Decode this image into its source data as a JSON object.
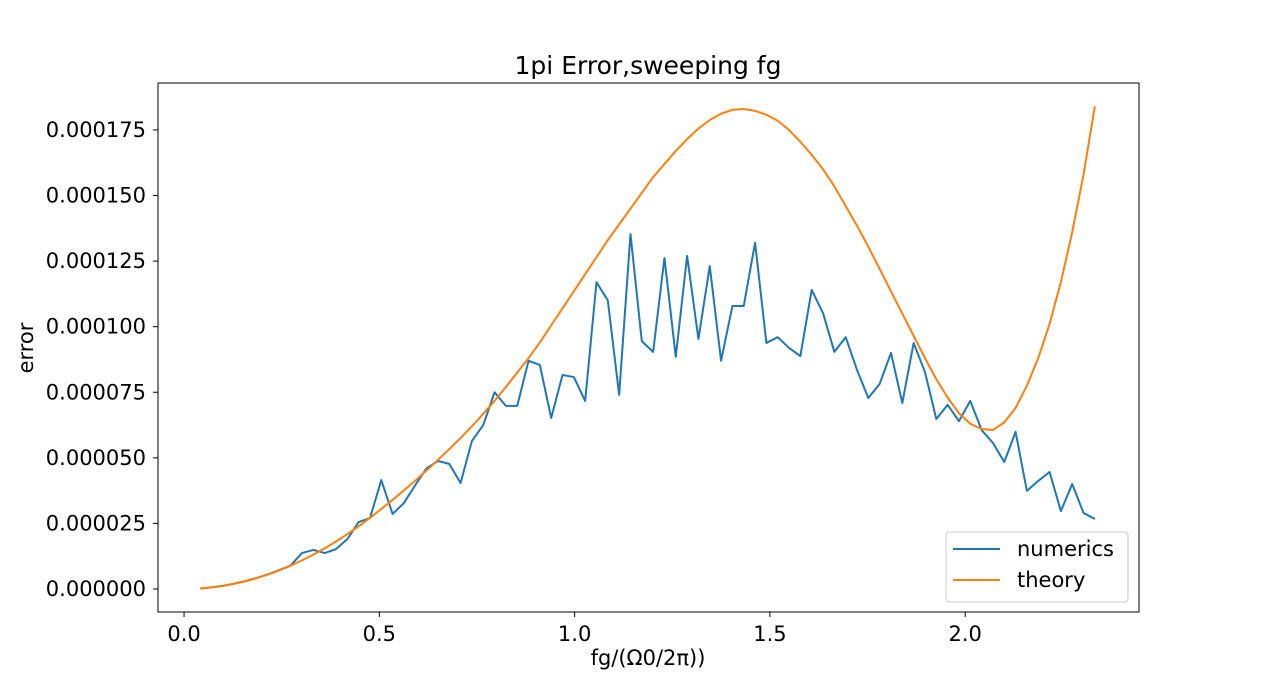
{
  "chart_data": {
    "type": "line",
    "title": "1pi Error,sweeping fg",
    "x_label": "fg/(Ω0/2π))",
    "y_label": "error",
    "x": [
      0.041,
      0.07,
      0.099,
      0.128,
      0.157,
      0.186,
      0.215,
      0.244,
      0.273,
      0.302,
      0.331,
      0.36,
      0.389,
      0.418,
      0.447,
      0.476,
      0.505,
      0.534,
      0.563,
      0.592,
      0.621,
      0.65,
      0.679,
      0.708,
      0.737,
      0.766,
      0.795,
      0.824,
      0.853,
      0.882,
      0.911,
      0.94,
      0.969,
      0.998,
      1.027,
      1.056,
      1.085,
      1.114,
      1.143,
      1.172,
      1.201,
      1.23,
      1.259,
      1.288,
      1.317,
      1.346,
      1.375,
      1.404,
      1.433,
      1.462,
      1.491,
      1.52,
      1.549,
      1.578,
      1.607,
      1.636,
      1.665,
      1.694,
      1.723,
      1.752,
      1.781,
      1.81,
      1.839,
      1.868,
      1.897,
      1.926,
      1.955,
      1.984,
      2.013,
      2.042,
      2.071,
      2.1,
      2.129,
      2.158,
      2.187,
      2.216,
      2.245,
      2.274,
      2.303,
      2.332
    ],
    "series": [
      {
        "name": "numerics",
        "color": "#1f77b4",
        "values": [
          2e-07,
          6e-07,
          1.2e-06,
          2e-06,
          3e-06,
          4.2e-06,
          5.6e-06,
          7.2e-06,
          9e-06,
          1.37e-05,
          1.49e-05,
          1.37e-05,
          1.52e-05,
          1.9e-05,
          2.55e-05,
          2.7e-05,
          4.15e-05,
          2.86e-05,
          3.28e-05,
          3.96e-05,
          4.6e-05,
          4.88e-05,
          4.77e-05,
          4.04e-05,
          5.64e-05,
          6.25e-05,
          7.5e-05,
          6.98e-05,
          6.98e-05,
          8.7e-05,
          8.54e-05,
          6.52e-05,
          8.16e-05,
          8.08e-05,
          7.17e-05,
          0.000117,
          0.00011,
          7.4e-05,
          0.0001353,
          9.45e-05,
          9.04e-05,
          0.0001262,
          8.85e-05,
          0.000127,
          9.53e-05,
          0.0001231,
          8.7e-05,
          0.0001079,
          0.0001079,
          0.000132,
          9.38e-05,
          9.6e-05,
          9.19e-05,
          8.88e-05,
          0.000114,
          0.0001052,
          9.04e-05,
          9.6e-05,
          8.35e-05,
          7.28e-05,
          7.82e-05,
          9e-05,
          7.09e-05,
          9.38e-05,
          8.27e-05,
          6.48e-05,
          7.02e-05,
          6.4e-05,
          7.17e-05,
          6.06e-05,
          5.57e-05,
          4.84e-05,
          5.99e-05,
          3.74e-05,
          4.12e-05,
          4.46e-05,
          2.97e-05,
          4e-05,
          2.9e-05,
          2.67e-05
        ]
      },
      {
        "name": "theory",
        "color": "#ff7f0e",
        "values": [
          2e-07,
          6e-07,
          1.2e-06,
          2e-06,
          3e-06,
          4.2e-06,
          5.5e-06,
          7.1e-06,
          8.9e-06,
          1.09e-05,
          1.31e-05,
          1.55e-05,
          1.81e-05,
          2.09e-05,
          2.39e-05,
          2.71e-05,
          3.05e-05,
          3.4e-05,
          3.76e-05,
          4.13e-05,
          4.52e-05,
          4.92e-05,
          5.33e-05,
          5.76e-05,
          6.2e-05,
          6.68e-05,
          7.17e-05,
          7.7e-05,
          8.25e-05,
          8.8e-05,
          9.4e-05,
          0.0001005,
          0.000107,
          0.0001135,
          0.00012,
          0.0001265,
          0.000133,
          0.000139,
          0.000145,
          0.000151,
          0.000157,
          0.000162,
          0.000167,
          0.0001715,
          0.0001755,
          0.0001788,
          0.0001812,
          0.0001827,
          0.000183,
          0.0001823,
          0.0001808,
          0.0001785,
          0.000175,
          0.0001705,
          0.0001655,
          0.00016,
          0.0001535,
          0.000146,
          0.0001385,
          0.0001305,
          0.000122,
          0.0001135,
          0.000105,
          9.65e-05,
          8.8e-05,
          8e-05,
          7.3e-05,
          6.7e-05,
          6.3e-05,
          6.1e-05,
          6.06e-05,
          6.35e-05,
          6.9e-05,
          7.75e-05,
          8.8e-05,
          0.000101,
          0.000117,
          0.000136,
          0.000158,
          0.000184
        ]
      }
    ],
    "xlim": [
      -0.0667,
      2.445
    ],
    "ylim": [
      -8.77e-06,
      0.0001929
    ],
    "xticks": [
      {
        "value": 0,
        "label": "0.0"
      },
      0.5,
      {
        "value": 1,
        "label": "1.0"
      },
      1.5,
      {
        "value": 2,
        "label": "2.0"
      }
    ],
    "yticks": [
      {
        "value": 0,
        "label": "0.000000"
      },
      {
        "value": 2.5e-05,
        "label": "0.000025"
      },
      {
        "value": 5e-05,
        "label": "0.000050"
      },
      {
        "value": 7.5e-05,
        "label": "0.000075"
      },
      {
        "value": 0.0001,
        "label": "0.000100"
      },
      {
        "value": 0.000125,
        "label": "0.000125"
      },
      {
        "value": 0.00015,
        "label": "0.000150"
      },
      {
        "value": 0.000175,
        "label": "0.000175"
      }
    ],
    "grid": false,
    "legend": "lower right"
  }
}
